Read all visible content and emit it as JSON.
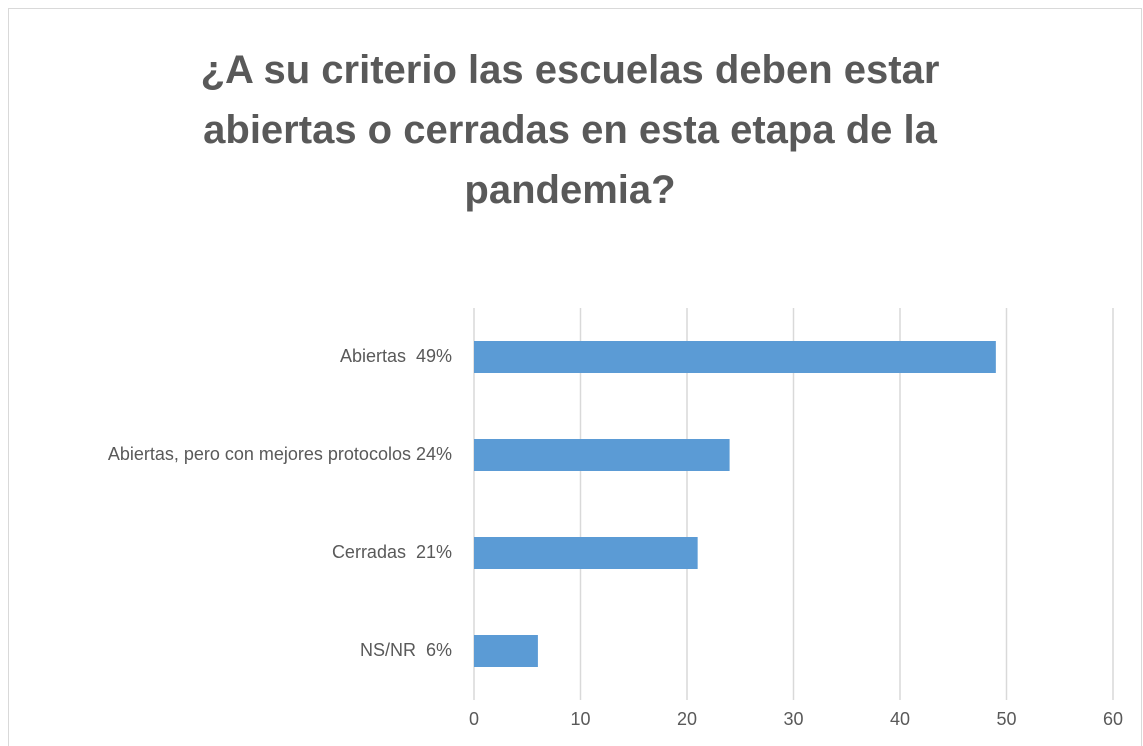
{
  "chart_data": {
    "type": "barh",
    "title": "¿A su criterio las escuelas deben estar abiertas o cerradas en esta etapa de la pandemia?",
    "categories": [
      "Abiertas  49%",
      "Abiertas, pero con mejores protocolos 24%",
      "Cerradas  21%",
      "NS/NR  6%"
    ],
    "values": [
      49,
      24,
      21,
      6
    ],
    "color": "#5b9bd5",
    "xlim": [
      0,
      60
    ],
    "xticks": [
      0,
      10,
      20,
      30,
      40,
      50,
      60
    ],
    "grid": true
  }
}
